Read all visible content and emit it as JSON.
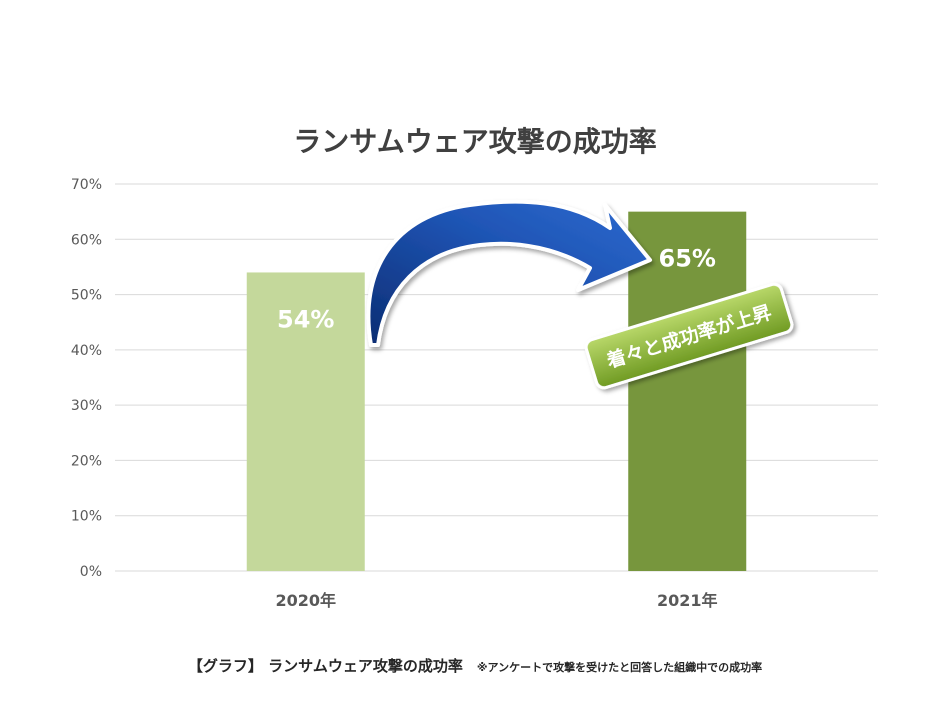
{
  "chart_data": {
    "type": "bar",
    "title": "ランサムウェア攻撃の成功率",
    "categories": [
      "2020年",
      "2021年"
    ],
    "values": [
      54,
      65
    ],
    "value_labels": [
      "54%",
      "65%"
    ],
    "ylim": [
      0,
      70
    ],
    "yticks": [
      "0%",
      "10%",
      "20%",
      "30%",
      "40%",
      "50%",
      "60%",
      "70%"
    ],
    "bar_colors": [
      "#c4d89b",
      "#77963d"
    ],
    "grid": true,
    "annotation": "着々と成功率が上昇"
  },
  "colors": {
    "gridline": "#d9d9d9",
    "axis_text": "#595959",
    "arrow": "#1f55b5",
    "badge": "#8db33a",
    "value_label": "#ffffff"
  },
  "caption": {
    "main": "【グラフ】 ランサムウェア攻撃の成功率",
    "note": "※アンケートで攻撃を受けたと回答した組織中での成功率"
  }
}
